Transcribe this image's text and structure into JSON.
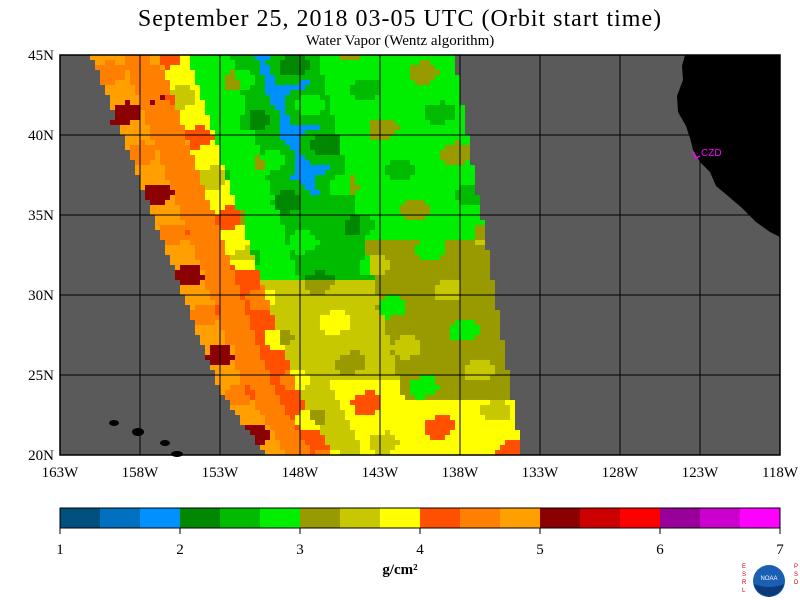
{
  "title": "September 25, 2018  03-05 UTC  (Orbit start time)",
  "subtitle": "Water Vapor (Wentz algorithm)",
  "map": {
    "lat_labels": [
      "45N",
      "40N",
      "35N",
      "30N",
      "25N",
      "20N"
    ],
    "lat_values": [
      45,
      40,
      35,
      30,
      25,
      20
    ],
    "lon_labels": [
      "163W",
      "158W",
      "153W",
      "148W",
      "143W",
      "138W",
      "133W",
      "128W",
      "123W",
      "118W"
    ],
    "lon_values": [
      -163,
      -158,
      -153,
      -148,
      -143,
      -138,
      -133,
      -128,
      -123,
      -118
    ],
    "station_label": "CZD",
    "ocean_color": "#5a5a5a",
    "land_color": "#000000",
    "missing_color": "#5a5a5a",
    "station_color": "#ff00ff"
  },
  "colorbar": {
    "ticks": [
      "1",
      "2",
      "3",
      "4",
      "5",
      "6",
      "7"
    ],
    "colors": [
      "#00507f",
      "#0070c0",
      "#0090ff",
      "#008800",
      "#00bb00",
      "#00ee00",
      "#999900",
      "#c8c800",
      "#ffff00",
      "#ff5000",
      "#ff7f00",
      "#ffa000",
      "#8b0000",
      "#cc0000",
      "#ff0000",
      "#990099",
      "#cc00cc",
      "#ff00ff"
    ],
    "unit_label": "g/cm²"
  },
  "logo": {
    "left_letters": "ESRL",
    "right_letters": "PSD",
    "center_text": "NOAA"
  }
}
